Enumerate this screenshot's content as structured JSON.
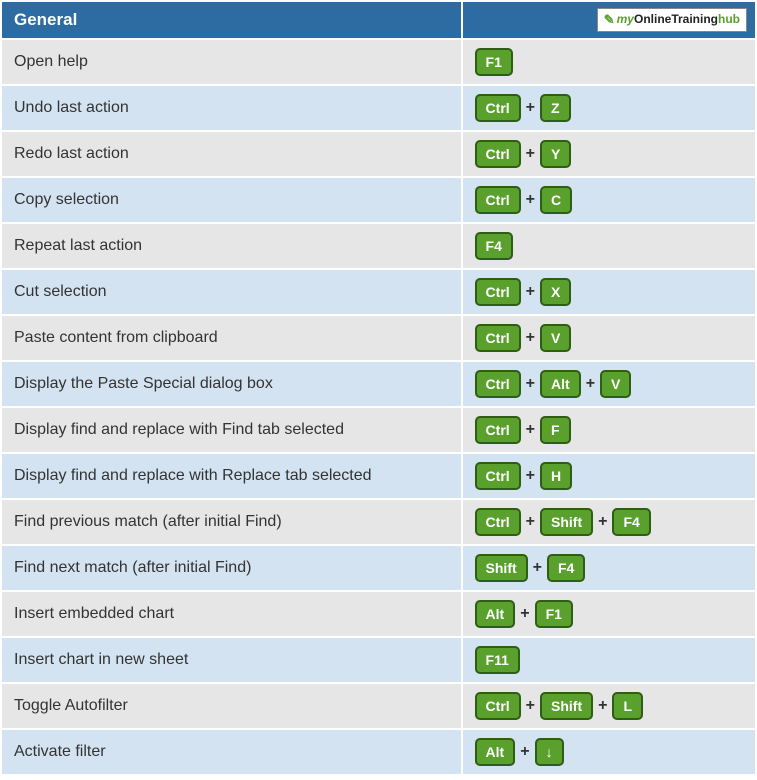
{
  "colors": {
    "header_bg": "#2d6ca2",
    "row_even_bg": "#e6e6e6",
    "row_odd_bg": "#d3e3f1",
    "key_bg": "#5aa02c",
    "key_border": "#2e5e13",
    "text": "#333333",
    "border": "#ffffff"
  },
  "header": {
    "title": "General",
    "logo": {
      "prefix": "my",
      "mid1": "Online",
      "mid2": "Training",
      "suffix": "hub"
    }
  },
  "plus": "+",
  "rows": [
    {
      "desc": "Open help",
      "keys": [
        "F1"
      ]
    },
    {
      "desc": "Undo last action",
      "keys": [
        "Ctrl",
        "Z"
      ]
    },
    {
      "desc": "Redo last action",
      "keys": [
        "Ctrl",
        "Y"
      ]
    },
    {
      "desc": "Copy selection",
      "keys": [
        "Ctrl",
        "C"
      ]
    },
    {
      "desc": "Repeat last action",
      "keys": [
        "F4"
      ]
    },
    {
      "desc": "Cut selection",
      "keys": [
        "Ctrl",
        "X"
      ]
    },
    {
      "desc": "Paste content from clipboard",
      "keys": [
        "Ctrl",
        "V"
      ]
    },
    {
      "desc": "Display the Paste Special dialog box",
      "keys": [
        "Ctrl",
        "Alt",
        "V"
      ]
    },
    {
      "desc": "Display find and replace with Find tab selected",
      "keys": [
        "Ctrl",
        "F"
      ]
    },
    {
      "desc": "Display find and replace with Replace tab selected",
      "keys": [
        "Ctrl",
        "H"
      ]
    },
    {
      "desc": "Find previous match (after initial Find)",
      "keys": [
        "Ctrl",
        "Shift",
        "F4"
      ]
    },
    {
      "desc": "Find next match (after initial Find)",
      "keys": [
        "Shift",
        "F4"
      ]
    },
    {
      "desc": "Insert embedded chart",
      "keys": [
        "Alt",
        "F1"
      ]
    },
    {
      "desc": "Insert chart in new sheet",
      "keys": [
        "F11"
      ]
    },
    {
      "desc": "Toggle Autofilter",
      "keys": [
        "Ctrl",
        "Shift",
        "L"
      ]
    },
    {
      "desc": "Activate filter",
      "keys": [
        "Alt",
        "↓"
      ]
    }
  ]
}
